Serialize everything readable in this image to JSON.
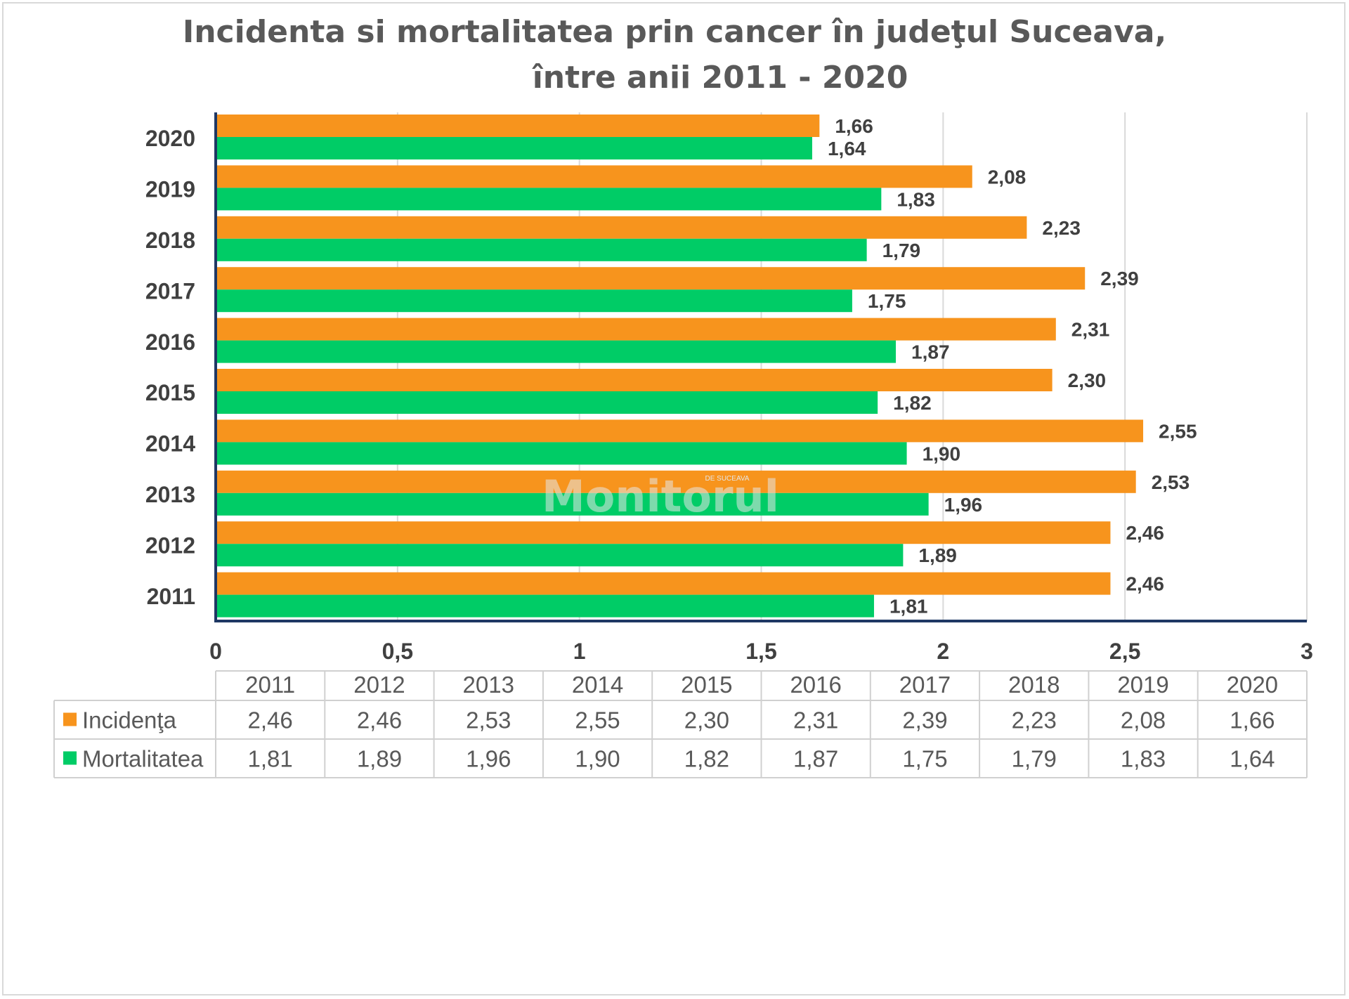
{
  "chart_data": {
    "type": "bar",
    "orientation": "horizontal",
    "title": "Incidenta  si  mortalitatea prin cancer  în judeţul Suceava,",
    "subtitle": "între anii 2011 - 2020",
    "categories": [
      "2011",
      "2012",
      "2013",
      "2014",
      "2015",
      "2016",
      "2017",
      "2018",
      "2019",
      "2020"
    ],
    "series": [
      {
        "name": "Incidenţa",
        "color": "#f7941d",
        "values": [
          2.46,
          2.46,
          2.53,
          2.55,
          2.3,
          2.31,
          2.39,
          2.23,
          2.08,
          1.66
        ],
        "labels": [
          "2,46",
          "2,46",
          "2,53",
          "2,55",
          "2,30",
          "2,31",
          "2,39",
          "2,23",
          "2,08",
          "1,66"
        ]
      },
      {
        "name": "Mortalitatea",
        "color": "#00cc66",
        "values": [
          1.81,
          1.89,
          1.96,
          1.9,
          1.82,
          1.87,
          1.75,
          1.79,
          1.83,
          1.64
        ],
        "labels": [
          "1,81",
          "1,89",
          "1,96",
          "1,90",
          "1,82",
          "1,87",
          "1,75",
          "1,79",
          "1,83",
          "1,64"
        ]
      }
    ],
    "xlim": [
      0,
      3
    ],
    "xticks": [
      0,
      0.5,
      1,
      1.5,
      2,
      2.5,
      3
    ],
    "xtick_labels": [
      "0",
      "0,5",
      "1",
      "1,5",
      "2",
      "2,5",
      "3"
    ],
    "grid": "vertical",
    "legend": "data table below chart",
    "watermark": "Monitorul",
    "watermark_small": "DE SUCEAVA"
  }
}
